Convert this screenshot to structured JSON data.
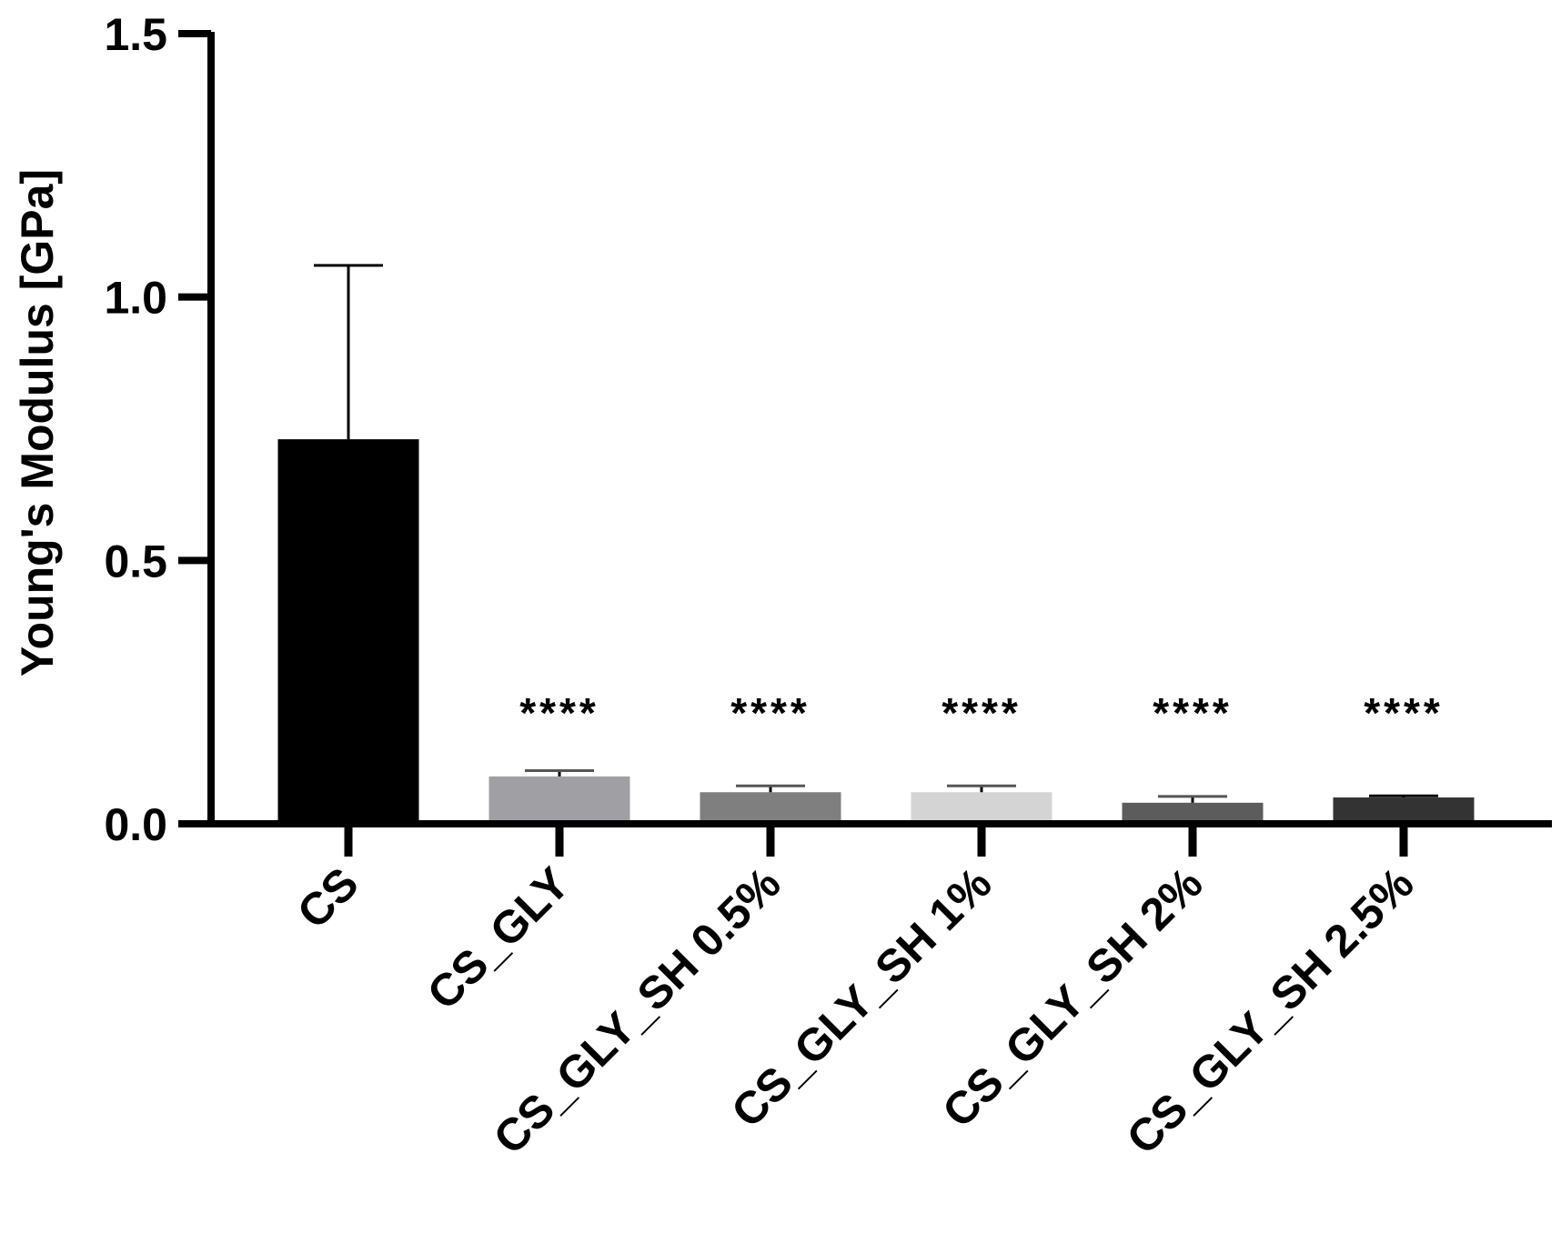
{
  "chart_data": {
    "type": "bar",
    "title": "",
    "xlabel": "",
    "ylabel": "Young's Modulus [GPa]",
    "ylim": [
      0,
      1.5
    ],
    "yticks": [
      "0.0",
      "0.5",
      "1.0",
      "1.5"
    ],
    "ytick_values": [
      0,
      0.5,
      1.0,
      1.5
    ],
    "grid": false,
    "legend": "none",
    "categories": [
      "CS",
      "CS_GLY",
      "CS_GLY_SH 0.5%",
      "CS_GLY_SH 1%",
      "CS_GLY_SH 2%",
      "CS_GLY_SH 2.5%"
    ],
    "values": [
      0.73,
      0.09,
      0.06,
      0.06,
      0.04,
      0.05
    ],
    "error_upper": [
      0.33,
      0.011,
      0.012,
      0.012,
      0.012,
      0.003
    ],
    "significance": [
      "",
      "****",
      "****",
      "****",
      "****",
      "****"
    ],
    "bar_colors": [
      "#000000",
      "#a0a0a4",
      "#7f7f7f",
      "#d4d4d4",
      "#5c5c5c",
      "#333333"
    ]
  }
}
